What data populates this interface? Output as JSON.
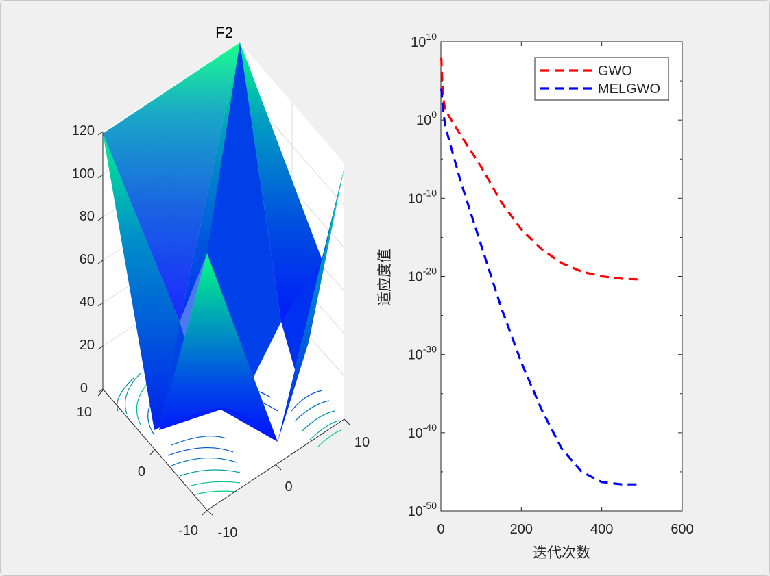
{
  "chart_data": [
    {
      "type": "surface3d",
      "title": "F2",
      "x_ticks": [
        "-10",
        "0",
        "10"
      ],
      "y_ticks": [
        "-10",
        "0",
        "10"
      ],
      "z_ticks": [
        "0",
        "20",
        "40",
        "60",
        "80",
        "100",
        "120"
      ],
      "zlim": [
        0,
        120
      ],
      "colormap": "winter",
      "contours_on_floor": true,
      "grid": true
    },
    {
      "type": "line",
      "xlabel": "迭代次数",
      "ylabel": "适应度值",
      "xlim": [
        0,
        600
      ],
      "x_ticks": [
        "0",
        "200",
        "400",
        "600"
      ],
      "y_scale": "log",
      "ylim_exp": [
        -50,
        10
      ],
      "y_ticks": [
        {
          "base": "10",
          "exp": "10"
        },
        {
          "base": "10",
          "exp": "0"
        },
        {
          "base": "10",
          "exp": "-10"
        },
        {
          "base": "10",
          "exp": "-20"
        },
        {
          "base": "10",
          "exp": "-30"
        },
        {
          "base": "10",
          "exp": "-40"
        },
        {
          "base": "10",
          "exp": "-50"
        }
      ],
      "legend": "top-right",
      "series": [
        {
          "name": "GWO",
          "color": "#ff0000",
          "style": "dashed",
          "x": [
            1,
            5,
            10,
            20,
            50,
            100,
            150,
            200,
            250,
            300,
            350,
            400,
            450,
            500
          ],
          "log10_y": [
            8,
            3,
            1.5,
            0.5,
            -2,
            -6,
            -10.5,
            -14,
            -16.5,
            -18.3,
            -19.4,
            -20,
            -20.3,
            -20.4
          ]
        },
        {
          "name": "MELGWO",
          "color": "#0000ff",
          "style": "dashed",
          "x": [
            1,
            5,
            10,
            20,
            50,
            100,
            150,
            200,
            250,
            300,
            350,
            400,
            450,
            500
          ],
          "log10_y": [
            4,
            1.5,
            -0.5,
            -2.5,
            -8,
            -16,
            -24,
            -31,
            -37,
            -42,
            -45,
            -46.3,
            -46.6,
            -46.6
          ]
        }
      ]
    }
  ]
}
